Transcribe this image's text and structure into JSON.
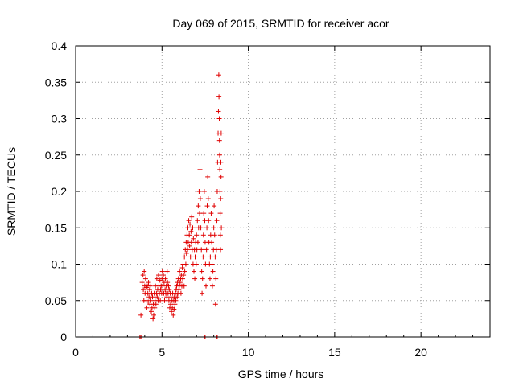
{
  "chart_data": {
    "type": "scatter",
    "title": "Day 069 of 2015, SRMTID for receiver acor",
    "xlabel": "GPS time / hours",
    "ylabel": "SRMTID / TECUs",
    "xlim": [
      0,
      24
    ],
    "ylim": [
      0,
      0.4
    ],
    "x_ticks": [
      0,
      5,
      10,
      15,
      20
    ],
    "y_ticks": [
      0,
      0.05,
      0.1,
      0.15,
      0.2,
      0.25,
      0.3,
      0.35,
      0.4
    ],
    "x_tick_labels": [
      "0",
      "5",
      "10",
      "15",
      "20"
    ],
    "y_tick_labels": [
      "0",
      "0.05",
      "0.1",
      "0.15",
      "0.2",
      "0.25",
      "0.3",
      "0.35",
      "0.4"
    ],
    "grid": true,
    "marker": "+",
    "marker_color": "#e00000",
    "series": [
      {
        "points": [
          [
            3.72,
            0.0
          ],
          [
            3.78,
            0.0
          ],
          [
            3.84,
            0.0
          ],
          [
            3.78,
            0.03
          ],
          [
            3.85,
            0.075
          ],
          [
            3.9,
            0.085
          ],
          [
            3.92,
            0.065
          ],
          [
            3.95,
            0.05
          ],
          [
            3.97,
            0.09
          ],
          [
            4.0,
            0.07
          ],
          [
            4.02,
            0.06
          ],
          [
            4.05,
            0.08
          ],
          [
            4.08,
            0.05
          ],
          [
            4.1,
            0.068
          ],
          [
            4.12,
            0.04
          ],
          [
            4.15,
            0.07
          ],
          [
            4.18,
            0.06
          ],
          [
            4.2,
            0.048
          ],
          [
            4.22,
            0.075
          ],
          [
            4.25,
            0.055
          ],
          [
            4.28,
            0.065
          ],
          [
            4.3,
            0.045
          ],
          [
            4.32,
            0.07
          ],
          [
            4.35,
            0.05
          ],
          [
            4.38,
            0.035
          ],
          [
            4.4,
            0.06
          ],
          [
            4.42,
            0.04
          ],
          [
            4.45,
            0.055
          ],
          [
            4.48,
            0.025
          ],
          [
            4.5,
            0.045
          ],
          [
            4.52,
            0.03
          ],
          [
            4.55,
            0.06
          ],
          [
            4.58,
            0.04
          ],
          [
            4.6,
            0.05
          ],
          [
            4.62,
            0.07
          ],
          [
            4.65,
            0.045
          ],
          [
            4.68,
            0.06
          ],
          [
            4.7,
            0.08
          ],
          [
            4.72,
            0.055
          ],
          [
            4.75,
            0.065
          ],
          [
            4.78,
            0.05
          ],
          [
            4.8,
            0.085
          ],
          [
            4.82,
            0.07
          ],
          [
            4.85,
            0.06
          ],
          [
            4.88,
            0.078
          ],
          [
            4.9,
            0.05
          ],
          [
            4.92,
            0.065
          ],
          [
            4.95,
            0.07
          ],
          [
            4.98,
            0.06
          ],
          [
            5.0,
            0.08
          ],
          [
            5.02,
            0.09
          ],
          [
            5.05,
            0.07
          ],
          [
            5.08,
            0.085
          ],
          [
            5.1,
            0.06
          ],
          [
            5.12,
            0.075
          ],
          [
            5.15,
            0.05
          ],
          [
            5.18,
            0.065
          ],
          [
            5.2,
            0.08
          ],
          [
            5.22,
            0.06
          ],
          [
            5.25,
            0.07
          ],
          [
            5.28,
            0.055
          ],
          [
            5.3,
            0.09
          ],
          [
            5.32,
            0.075
          ],
          [
            5.35,
            0.06
          ],
          [
            5.38,
            0.07
          ],
          [
            5.4,
            0.05
          ],
          [
            5.42,
            0.065
          ],
          [
            5.45,
            0.04
          ],
          [
            5.48,
            0.06
          ],
          [
            5.5,
            0.045
          ],
          [
            5.52,
            0.055
          ],
          [
            5.55,
            0.035
          ],
          [
            5.58,
            0.05
          ],
          [
            5.6,
            0.04
          ],
          [
            5.62,
            0.06
          ],
          [
            5.65,
            0.03
          ],
          [
            5.68,
            0.05
          ],
          [
            5.7,
            0.038
          ],
          [
            5.72,
            0.055
          ],
          [
            5.75,
            0.045
          ],
          [
            5.78,
            0.06
          ],
          [
            5.8,
            0.05
          ],
          [
            5.82,
            0.065
          ],
          [
            5.85,
            0.07
          ],
          [
            5.88,
            0.055
          ],
          [
            5.9,
            0.075
          ],
          [
            5.92,
            0.06
          ],
          [
            5.95,
            0.08
          ],
          [
            5.98,
            0.065
          ],
          [
            6.0,
            0.07
          ],
          [
            6.02,
            0.09
          ],
          [
            6.05,
            0.075
          ],
          [
            6.08,
            0.08
          ],
          [
            6.1,
            0.06
          ],
          [
            6.12,
            0.085
          ],
          [
            6.15,
            0.07
          ],
          [
            6.18,
            0.095
          ],
          [
            6.2,
            0.08
          ],
          [
            6.22,
            0.1
          ],
          [
            6.25,
            0.085
          ],
          [
            6.28,
            0.07
          ],
          [
            6.3,
            0.11
          ],
          [
            6.32,
            0.09
          ],
          [
            6.35,
            0.12
          ],
          [
            6.38,
            0.1
          ],
          [
            6.4,
            0.13
          ],
          [
            6.42,
            0.115
          ],
          [
            6.45,
            0.14
          ],
          [
            6.48,
            0.12
          ],
          [
            6.5,
            0.15
          ],
          [
            6.52,
            0.13
          ],
          [
            6.55,
            0.16
          ],
          [
            6.58,
            0.14
          ],
          [
            6.6,
            0.125
          ],
          [
            6.62,
            0.155
          ],
          [
            6.65,
            0.11
          ],
          [
            6.68,
            0.145
          ],
          [
            6.7,
            0.13
          ],
          [
            6.72,
            0.165
          ],
          [
            6.75,
            0.12
          ],
          [
            6.78,
            0.15
          ],
          [
            6.8,
            0.1
          ],
          [
            6.82,
            0.135
          ],
          [
            6.85,
            0.09
          ],
          [
            6.88,
            0.12
          ],
          [
            6.9,
            0.08
          ],
          [
            6.92,
            0.11
          ],
          [
            6.95,
            0.13
          ],
          [
            6.98,
            0.1
          ],
          [
            7.0,
            0.14
          ],
          [
            7.02,
            0.12
          ],
          [
            7.05,
            0.16
          ],
          [
            7.08,
            0.13
          ],
          [
            7.1,
            0.18
          ],
          [
            7.12,
            0.15
          ],
          [
            7.15,
            0.2
          ],
          [
            7.18,
            0.17
          ],
          [
            7.2,
            0.23
          ],
          [
            7.22,
            0.19
          ],
          [
            7.25,
            0.15
          ],
          [
            7.28,
            0.12
          ],
          [
            7.3,
            0.09
          ],
          [
            7.32,
            0.06
          ],
          [
            7.35,
            0.08
          ],
          [
            7.38,
            0.11
          ],
          [
            7.4,
            0.14
          ],
          [
            7.42,
            0.17
          ],
          [
            7.45,
            0.2
          ],
          [
            7.48,
            0.16
          ],
          [
            7.5,
            0.13
          ],
          [
            7.52,
            0.1
          ],
          [
            7.55,
            0.07
          ],
          [
            7.58,
            0.12
          ],
          [
            7.6,
            0.15
          ],
          [
            7.62,
            0.18
          ],
          [
            7.65,
            0.22
          ],
          [
            7.68,
            0.19
          ],
          [
            7.7,
            0.16
          ],
          [
            7.72,
            0.13
          ],
          [
            7.75,
            0.1
          ],
          [
            7.78,
            0.08
          ],
          [
            7.8,
            0.11
          ],
          [
            7.82,
            0.14
          ],
          [
            7.85,
            0.17
          ],
          [
            7.88,
            0.13
          ],
          [
            7.9,
            0.1
          ],
          [
            7.92,
            0.07
          ],
          [
            7.95,
            0.09
          ],
          [
            7.98,
            0.12
          ],
          [
            8.0,
            0.15
          ],
          [
            8.02,
            0.18
          ],
          [
            8.05,
            0.14
          ],
          [
            8.08,
            0.11
          ],
          [
            8.1,
            0.045
          ],
          [
            8.12,
            0.08
          ],
          [
            8.15,
            0.12
          ],
          [
            8.18,
            0.16
          ],
          [
            8.2,
            0.2
          ],
          [
            8.22,
            0.24
          ],
          [
            8.25,
            0.28
          ],
          [
            8.27,
            0.31
          ],
          [
            8.29,
            0.36
          ],
          [
            8.3,
            0.33
          ],
          [
            8.32,
            0.3
          ],
          [
            8.33,
            0.27
          ],
          [
            8.34,
            0.25
          ],
          [
            8.35,
            0.23
          ],
          [
            8.36,
            0.2
          ],
          [
            8.37,
            0.17
          ],
          [
            8.38,
            0.14
          ],
          [
            8.39,
            0.12
          ],
          [
            8.4,
            0.19
          ],
          [
            8.41,
            0.24
          ],
          [
            8.42,
            0.22
          ],
          [
            8.43,
            0.28
          ],
          [
            8.44,
            0.15
          ],
          [
            7.45,
            0.0
          ],
          [
            7.5,
            0.0
          ],
          [
            8.15,
            0.0
          ],
          [
            8.2,
            0.0
          ]
        ]
      }
    ]
  }
}
